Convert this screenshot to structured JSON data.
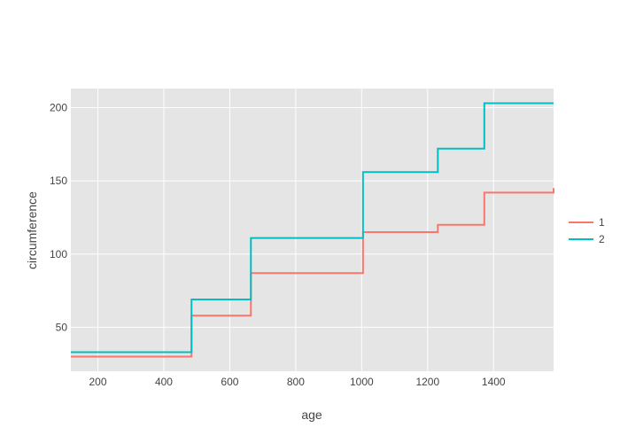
{
  "chart_data": {
    "type": "line",
    "line_shape": "step",
    "title": "",
    "xlabel": "age",
    "ylabel": "circumference",
    "xlim": [
      118,
      1582
    ],
    "ylim": [
      20,
      213
    ],
    "xticks": [
      200,
      400,
      600,
      800,
      1000,
      1200,
      1400
    ],
    "yticks": [
      50,
      100,
      150,
      200
    ],
    "grid": true,
    "legend_position": "right",
    "x": [
      118,
      484,
      664,
      1004,
      1231,
      1372,
      1582
    ],
    "series": [
      {
        "name": "1",
        "color": "#F8766D",
        "values": [
          30,
          58,
          87,
          115,
          120,
          142,
          145
        ]
      },
      {
        "name": "2",
        "color": "#00BFC4",
        "values": [
          33,
          69,
          111,
          156,
          172,
          203,
          203
        ]
      }
    ]
  }
}
